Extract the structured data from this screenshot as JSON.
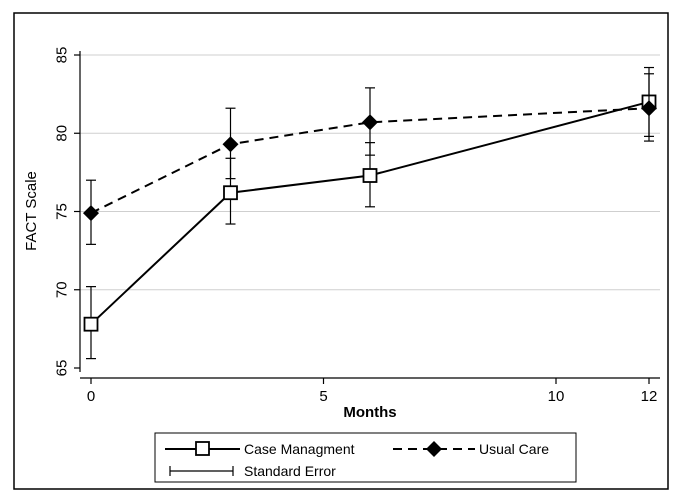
{
  "chart_data": {
    "type": "line",
    "xlabel": "Months",
    "ylabel": "FACT Scale",
    "xlim": [
      0,
      12
    ],
    "ylim": [
      65,
      85
    ],
    "x_ticks": [
      0,
      5,
      10,
      12
    ],
    "y_ticks": [
      65,
      70,
      75,
      80,
      85
    ],
    "grid": true,
    "legend_position": "bottom",
    "series": [
      {
        "name": "Case Managment",
        "style": "solid",
        "marker": "hollow-square",
        "color": "#000000",
        "points": [
          {
            "x": 0,
            "y": 67.8,
            "low": 65.6,
            "high": 70.2
          },
          {
            "x": 3,
            "y": 76.2,
            "low": 74.2,
            "high": 78.4
          },
          {
            "x": 6,
            "y": 77.3,
            "low": 75.3,
            "high": 79.4
          },
          {
            "x": 12,
            "y": 82.0,
            "low": 79.8,
            "high": 84.2
          }
        ]
      },
      {
        "name": "Usual Care",
        "style": "dashed",
        "marker": "filled-diamond",
        "color": "#000000",
        "points": [
          {
            "x": 0,
            "y": 74.9,
            "low": 72.9,
            "high": 77.0
          },
          {
            "x": 3,
            "y": 79.3,
            "low": 77.1,
            "high": 81.6
          },
          {
            "x": 6,
            "y": 80.7,
            "low": 78.6,
            "high": 82.9
          },
          {
            "x": 12,
            "y": 81.6,
            "low": 79.5,
            "high": 83.8
          }
        ]
      }
    ],
    "legend_extra": "Standard Error"
  }
}
